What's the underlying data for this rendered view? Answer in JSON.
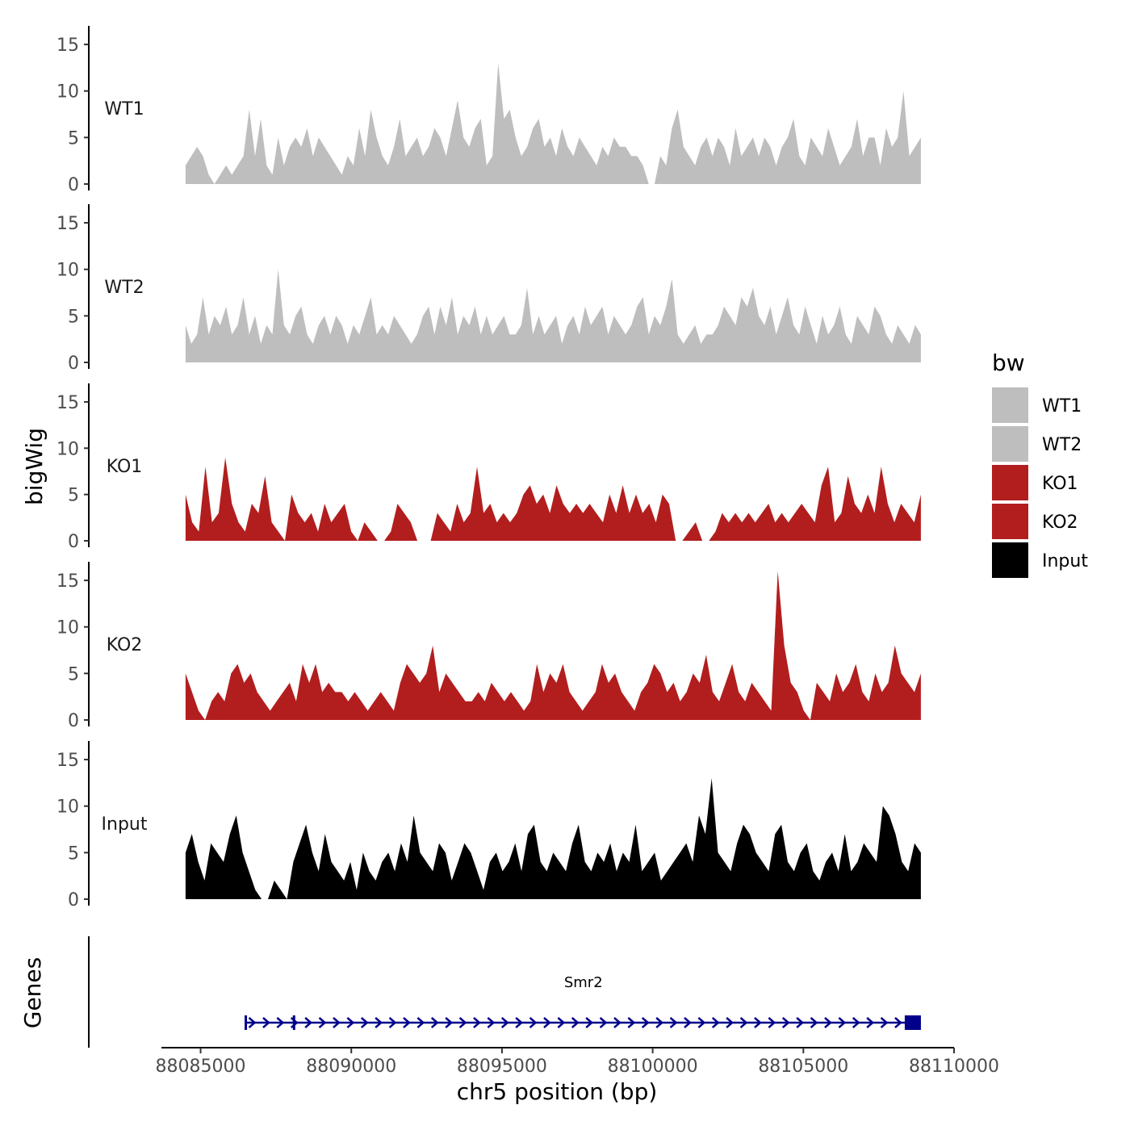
{
  "chart_data": {
    "type": "area",
    "ylabel": "bigWig",
    "xlabel": "chr5 position (bp)",
    "xlim": [
      88083700,
      88110000
    ],
    "ylim": [
      0,
      17
    ],
    "yticks": [
      0,
      5,
      10,
      15
    ],
    "xticks": [
      88085000,
      88090000,
      88095000,
      88100000,
      88105000,
      88110000
    ],
    "xtick_labels": [
      "88085000",
      "88090000",
      "88095000",
      "88100000",
      "88105000",
      "88110000"
    ],
    "ytick_labels": [
      "0",
      "5",
      "10",
      "15"
    ],
    "genes_label": "Genes",
    "legend": {
      "title": "bw",
      "position": "right",
      "items": [
        {
          "label": "WT1",
          "color": "#bebebe"
        },
        {
          "label": "WT2",
          "color": "#bebebe"
        },
        {
          "label": "KO1",
          "color": "#b21e1e"
        },
        {
          "label": "KO2",
          "color": "#b21e1e"
        },
        {
          "label": "Input",
          "color": "#000000"
        }
      ]
    },
    "x_start": 88084500,
    "x_end": 88108900,
    "series": [
      {
        "name": "WT1",
        "color": "#bebebe",
        "values": [
          2,
          3,
          4,
          3,
          1,
          0,
          1,
          2,
          1,
          2,
          3,
          8,
          3,
          7,
          2,
          1,
          5,
          2,
          4,
          5,
          4,
          6,
          3,
          5,
          4,
          3,
          2,
          1,
          3,
          2,
          6,
          3,
          8,
          5,
          3,
          2,
          4,
          7,
          3,
          4,
          5,
          3,
          4,
          6,
          5,
          3,
          6,
          9,
          5,
          4,
          6,
          7,
          2,
          3,
          13,
          7,
          8,
          5,
          3,
          4,
          6,
          7,
          4,
          5,
          3,
          6,
          4,
          3,
          5,
          4,
          3,
          2,
          4,
          3,
          5,
          4,
          4,
          3,
          3,
          2,
          0,
          0,
          3,
          2,
          6,
          8,
          4,
          3,
          2,
          4,
          5,
          3,
          5,
          4,
          2,
          6,
          3,
          4,
          5,
          3,
          5,
          4,
          2,
          4,
          5,
          7,
          3,
          2,
          5,
          4,
          3,
          6,
          4,
          2,
          3,
          4,
          7,
          3,
          5,
          5,
          2,
          6,
          4,
          5,
          10,
          3,
          4,
          5
        ]
      },
      {
        "name": "WT2",
        "color": "#bebebe",
        "values": [
          4,
          2,
          3,
          7,
          3,
          5,
          4,
          6,
          3,
          4,
          7,
          3,
          5,
          2,
          4,
          3,
          10,
          4,
          3,
          5,
          6,
          3,
          2,
          4,
          5,
          3,
          5,
          4,
          2,
          4,
          3,
          5,
          7,
          3,
          4,
          3,
          5,
          4,
          3,
          2,
          3,
          5,
          6,
          3,
          6,
          4,
          7,
          3,
          5,
          4,
          6,
          3,
          5,
          3,
          4,
          5,
          3,
          3,
          4,
          8,
          3,
          5,
          3,
          4,
          5,
          2,
          4,
          5,
          3,
          6,
          4,
          5,
          6,
          3,
          5,
          4,
          3,
          4,
          6,
          7,
          3,
          5,
          4,
          6,
          9,
          3,
          2,
          3,
          4,
          2,
          3,
          3,
          4,
          6,
          5,
          4,
          7,
          6,
          8,
          5,
          4,
          6,
          3,
          5,
          7,
          4,
          3,
          6,
          4,
          2,
          5,
          3,
          4,
          6,
          3,
          2,
          5,
          4,
          3,
          6,
          5,
          3,
          2,
          4,
          3,
          2,
          4,
          3
        ]
      },
      {
        "name": "KO1",
        "color": "#b21e1e",
        "values": [
          5,
          2,
          1,
          8,
          2,
          3,
          9,
          4,
          2,
          1,
          4,
          3,
          7,
          2,
          1,
          0,
          5,
          3,
          2,
          3,
          1,
          4,
          2,
          3,
          4,
          1,
          0,
          2,
          1,
          0,
          0,
          1,
          4,
          3,
          2,
          0,
          0,
          0,
          3,
          2,
          1,
          4,
          2,
          3,
          8,
          3,
          4,
          2,
          3,
          2,
          3,
          5,
          6,
          4,
          5,
          3,
          6,
          4,
          3,
          4,
          3,
          4,
          3,
          2,
          5,
          3,
          6,
          3,
          5,
          3,
          4,
          2,
          5,
          4,
          0,
          0,
          1,
          2,
          0,
          0,
          1,
          3,
          2,
          3,
          2,
          3,
          2,
          3,
          4,
          2,
          3,
          2,
          3,
          4,
          3,
          2,
          6,
          8,
          2,
          3,
          7,
          4,
          3,
          5,
          3,
          8,
          4,
          2,
          4,
          3,
          2,
          5
        ]
      },
      {
        "name": "KO2",
        "color": "#b21e1e",
        "values": [
          5,
          3,
          1,
          0,
          2,
          3,
          2,
          5,
          6,
          4,
          5,
          3,
          2,
          1,
          2,
          3,
          4,
          2,
          6,
          4,
          6,
          3,
          4,
          3,
          3,
          2,
          3,
          2,
          1,
          2,
          3,
          2,
          1,
          4,
          6,
          5,
          4,
          5,
          8,
          3,
          5,
          4,
          3,
          2,
          2,
          3,
          2,
          4,
          3,
          2,
          3,
          2,
          1,
          2,
          6,
          3,
          5,
          4,
          6,
          3,
          2,
          1,
          2,
          3,
          6,
          4,
          5,
          3,
          2,
          1,
          3,
          4,
          6,
          5,
          3,
          4,
          2,
          3,
          5,
          4,
          7,
          3,
          2,
          4,
          6,
          3,
          2,
          4,
          3,
          2,
          1,
          16,
          8,
          4,
          3,
          1,
          0,
          4,
          3,
          2,
          5,
          3,
          4,
          6,
          3,
          2,
          5,
          3,
          4,
          8,
          5,
          4,
          3,
          5
        ]
      },
      {
        "name": "Input",
        "color": "#000000",
        "values": [
          5,
          7,
          4,
          2,
          6,
          5,
          4,
          7,
          9,
          5,
          3,
          1,
          0,
          0,
          2,
          1,
          0,
          4,
          6,
          8,
          5,
          3,
          7,
          4,
          3,
          2,
          4,
          1,
          5,
          3,
          2,
          4,
          5,
          3,
          6,
          4,
          9,
          5,
          4,
          3,
          6,
          5,
          2,
          4,
          6,
          5,
          3,
          1,
          4,
          5,
          3,
          4,
          6,
          3,
          7,
          8,
          4,
          3,
          5,
          4,
          3,
          6,
          8,
          4,
          3,
          5,
          4,
          6,
          3,
          5,
          4,
          8,
          3,
          4,
          5,
          2,
          3,
          4,
          5,
          6,
          4,
          9,
          7,
          13,
          5,
          4,
          3,
          6,
          8,
          7,
          5,
          4,
          3,
          7,
          8,
          4,
          3,
          5,
          6,
          3,
          2,
          4,
          5,
          3,
          7,
          3,
          4,
          6,
          5,
          4,
          10,
          9,
          7,
          4,
          3,
          6,
          5
        ]
      }
    ],
    "genes": [
      {
        "name": "Smr2",
        "start": 88086500,
        "end": 88108900,
        "strand": "+",
        "color": "#00008b"
      }
    ]
  }
}
